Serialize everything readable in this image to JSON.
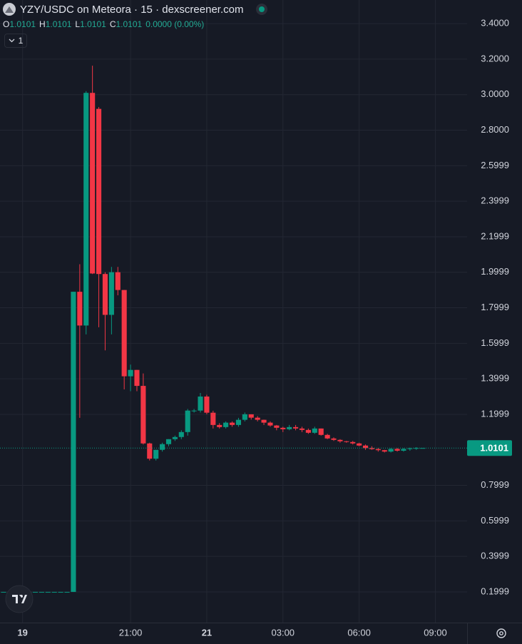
{
  "chart_data": {
    "type": "candlestick",
    "title": "YZY/USDC on Meteora · 15 · dexscreener.com",
    "legend": {
      "keys": [
        "O",
        "H",
        "L",
        "C"
      ],
      "values": [
        "1.0101",
        "1.0101",
        "1.0101",
        "1.0101"
      ],
      "change": "0.0000 (0.00%)"
    },
    "indicator_count": "1",
    "last_price": {
      "value": 1.0101,
      "label": "1.0101"
    },
    "up_color": "#089981",
    "down_color": "#f23645",
    "grid": true,
    "categories": [
      null,
      null,
      null,
      null,
      null,
      null,
      null,
      null,
      null,
      null,
      null,
      null,
      null,
      null,
      null,
      null,
      null,
      null,
      null,
      null,
      null,
      null,
      null,
      null,
      null,
      null,
      null,
      null,
      null,
      null,
      null,
      null,
      null,
      null,
      null,
      null,
      null,
      null,
      null,
      null,
      null,
      null,
      null,
      null,
      null,
      null,
      null,
      null,
      null,
      null,
      null,
      null,
      null,
      null,
      null,
      null,
      null,
      null,
      null,
      null,
      null,
      null,
      null,
      null,
      null,
      null,
      null
    ],
    "open": [
      0.2,
      0.2,
      0.2,
      0.2,
      0.2,
      0.2,
      0.2,
      0.2,
      0.2,
      0.2,
      0.2,
      0.2,
      1.89,
      1.7,
      3.01,
      2.92,
      1.99,
      1.76,
      2.0,
      1.9,
      1.414,
      1.45,
      1.36,
      1.036,
      0.95,
      1.0,
      1.032,
      1.06,
      1.072,
      1.1,
      1.221,
      1.221,
      1.3,
      1.209,
      1.14,
      1.128,
      1.153,
      1.14,
      1.169,
      1.2,
      1.181,
      1.169,
      1.153,
      1.137,
      1.124,
      1.116,
      1.128,
      1.12,
      1.112,
      1.096,
      1.12,
      1.084,
      1.064,
      1.056,
      1.048,
      1.044,
      1.036,
      1.024,
      1.01,
      1.004,
      0.998,
      0.99,
      1.005,
      0.995,
      1.005,
      1.008,
      1.0101
    ],
    "high": [
      0.2,
      0.2,
      0.2,
      0.2,
      0.2,
      0.2,
      0.2,
      0.2,
      0.2,
      0.2,
      0.2,
      1.89,
      2.045,
      3.02,
      3.163,
      2.93,
      2.0,
      2.03,
      2.03,
      1.9,
      1.48,
      1.45,
      1.43,
      1.04,
      1.0,
      1.04,
      1.06,
      1.08,
      1.11,
      1.23,
      1.23,
      1.32,
      1.31,
      1.22,
      1.15,
      1.16,
      1.16,
      1.18,
      1.21,
      1.2,
      1.19,
      1.17,
      1.16,
      1.14,
      1.13,
      1.14,
      1.14,
      1.13,
      1.12,
      1.13,
      1.12,
      1.09,
      1.07,
      1.06,
      1.05,
      1.05,
      1.04,
      1.03,
      1.02,
      1.01,
      1.0,
      1.01,
      1.01,
      1.01,
      1.012,
      1.015,
      1.0101
    ],
    "low": [
      0.2,
      0.2,
      0.2,
      0.2,
      0.2,
      0.2,
      0.2,
      0.2,
      0.2,
      0.2,
      0.2,
      0.2,
      1.18,
      1.65,
      1.99,
      1.69,
      1.56,
      1.65,
      1.87,
      1.34,
      1.33,
      1.33,
      1.03,
      0.94,
      0.94,
      0.99,
      1.02,
      1.05,
      1.06,
      1.08,
      1.21,
      1.21,
      1.2,
      1.12,
      1.12,
      1.12,
      1.13,
      1.13,
      1.16,
      1.17,
      1.16,
      1.14,
      1.13,
      1.11,
      1.1,
      1.11,
      1.11,
      1.1,
      1.09,
      1.09,
      1.08,
      1.06,
      1.05,
      1.04,
      1.04,
      1.03,
      1.02,
      1.0,
      1.0,
      0.99,
      0.985,
      0.985,
      0.99,
      0.99,
      0.995,
      1.0,
      1.0101
    ],
    "close": [
      0.2,
      0.2,
      0.2,
      0.2,
      0.2,
      0.2,
      0.2,
      0.2,
      0.2,
      0.2,
      0.2,
      1.89,
      1.7,
      3.01,
      1.993,
      1.99,
      1.76,
      2.0,
      1.9,
      1.414,
      1.45,
      1.36,
      1.036,
      0.95,
      1.0,
      1.032,
      1.06,
      1.072,
      1.1,
      1.221,
      1.221,
      1.3,
      1.209,
      1.14,
      1.128,
      1.153,
      1.14,
      1.169,
      1.2,
      1.181,
      1.169,
      1.153,
      1.137,
      1.124,
      1.116,
      1.128,
      1.12,
      1.112,
      1.096,
      1.12,
      1.084,
      1.064,
      1.056,
      1.048,
      1.044,
      1.036,
      1.024,
      1.01,
      1.004,
      0.998,
      0.99,
      1.005,
      0.995,
      1.005,
      1.008,
      1.0101,
      1.0101
    ],
    "xlim": [
      -0.56,
      73.0
    ],
    "xticks": [
      {
        "value": 3,
        "label": "19"
      },
      {
        "value": 20,
        "label": "21:00"
      },
      {
        "value": 32,
        "label": "21"
      },
      {
        "value": 44,
        "label": "03:00"
      },
      {
        "value": 56,
        "label": "06:00"
      },
      {
        "value": 68,
        "label": "09:00"
      }
    ],
    "ylim": [
      0.027,
      3.533
    ],
    "yticks": [
      {
        "value": 3.4,
        "label": "3.4000"
      },
      {
        "value": 3.2,
        "label": "3.2000"
      },
      {
        "value": 3.0,
        "label": "3.0000"
      },
      {
        "value": 2.8,
        "label": "2.8000"
      },
      2.5999,
      2.3999,
      2.1999,
      1.9999,
      1.7999,
      1.5999,
      1.3999,
      1.1999,
      0.7999,
      0.5999,
      0.3999,
      0.1999
    ]
  }
}
